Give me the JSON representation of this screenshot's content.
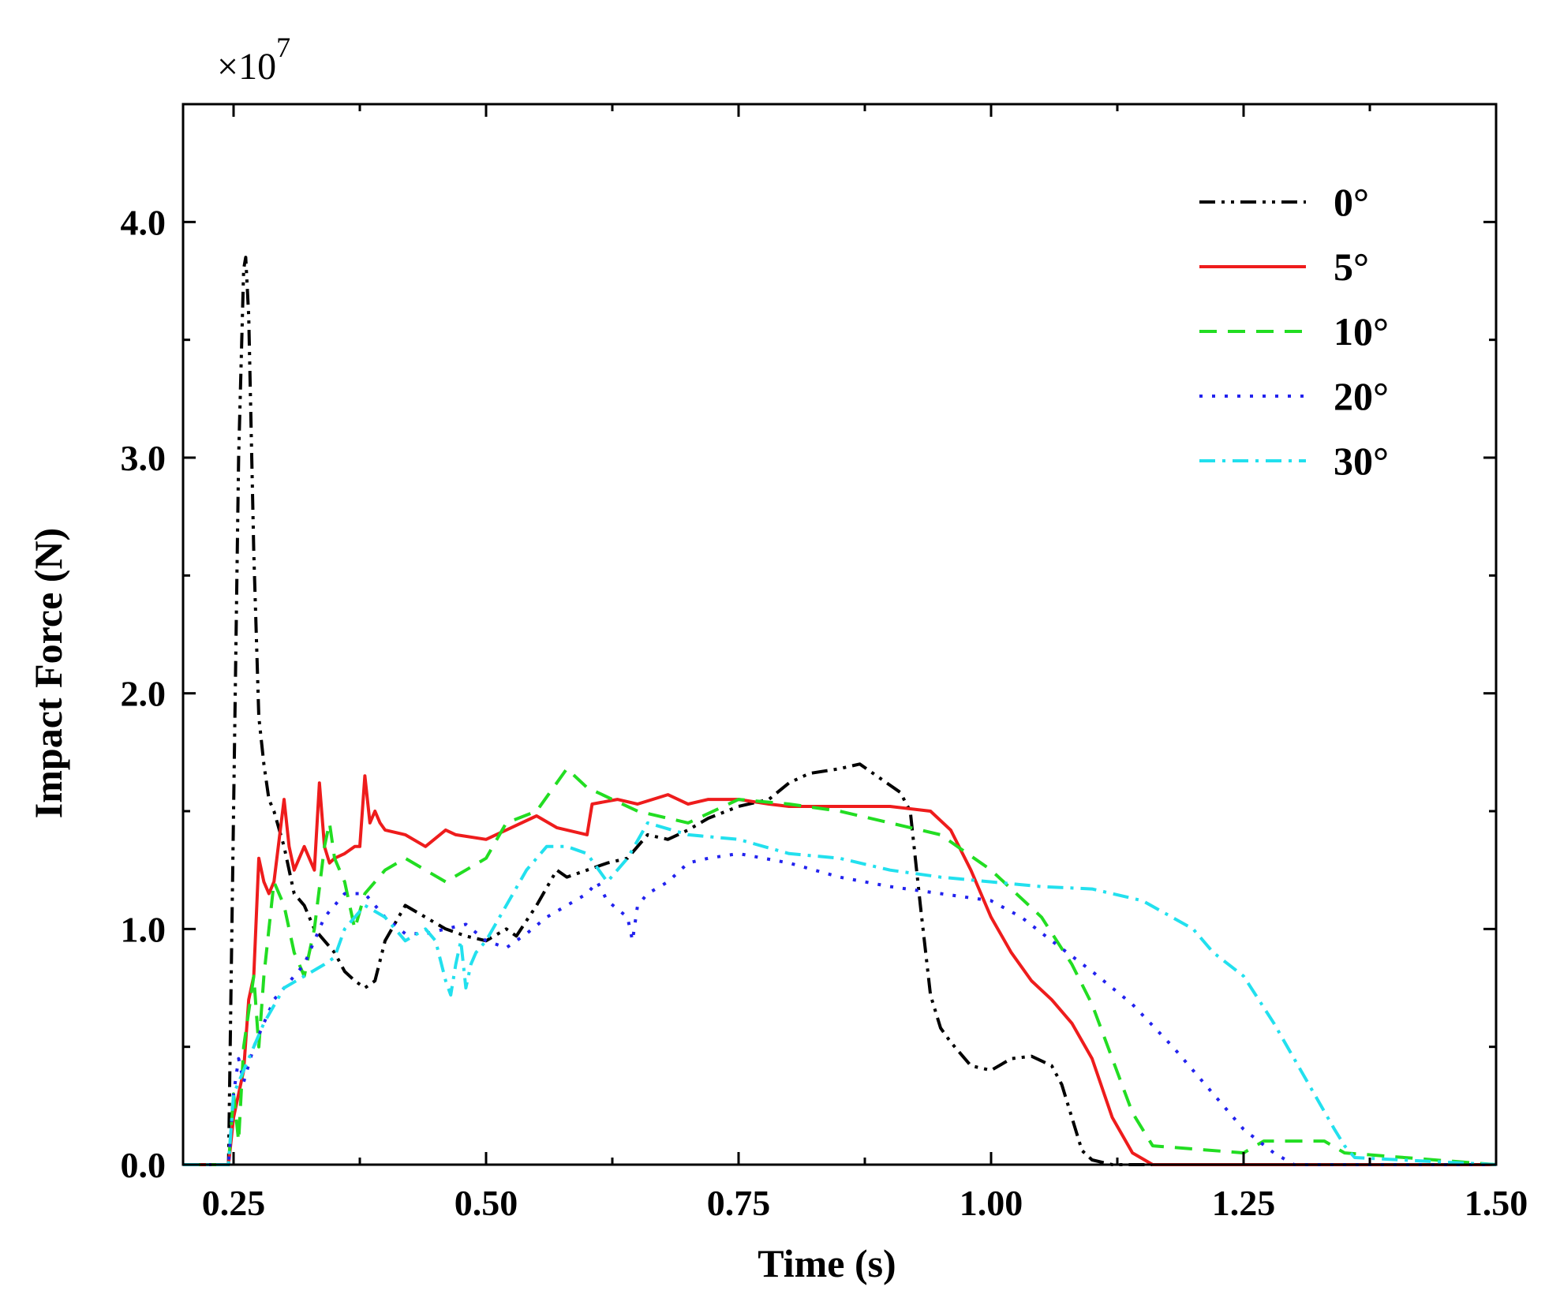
{
  "chart_data": {
    "type": "line",
    "title": "",
    "xlabel": "Time (s)",
    "ylabel": "Impact Force (N)",
    "y_multiplier": "×10",
    "y_multiplier_exp": "7",
    "xlim": [
      0.2,
      1.5
    ],
    "ylim": [
      0,
      4.5
    ],
    "x_ticks": [
      0.25,
      0.5,
      0.75,
      1.0,
      1.25,
      1.5
    ],
    "x_tick_labels": [
      "0.25",
      "0.50",
      "0.75",
      "1.00",
      "1.25",
      "1.50"
    ],
    "y_ticks": [
      0,
      1,
      2,
      3,
      4
    ],
    "y_tick_labels": [
      "0.0",
      "1.0",
      "2.0",
      "3.0",
      "4.0"
    ],
    "grid": false,
    "legend_position": "top-right",
    "series": [
      {
        "name": "0°",
        "color": "#000000",
        "dash": "dashdotdot",
        "x": [
          0.2,
          0.245,
          0.25,
          0.255,
          0.26,
          0.262,
          0.265,
          0.27,
          0.275,
          0.28,
          0.285,
          0.29,
          0.3,
          0.31,
          0.32,
          0.33,
          0.34,
          0.35,
          0.36,
          0.37,
          0.38,
          0.39,
          0.4,
          0.42,
          0.44,
          0.46,
          0.48,
          0.5,
          0.52,
          0.53,
          0.55,
          0.57,
          0.58,
          0.6,
          0.62,
          0.64,
          0.66,
          0.68,
          0.7,
          0.72,
          0.75,
          0.78,
          0.8,
          0.82,
          0.85,
          0.87,
          0.89,
          0.91,
          0.92,
          0.93,
          0.94,
          0.95,
          0.96,
          0.98,
          1.0,
          1.02,
          1.04,
          1.06,
          1.07,
          1.08,
          1.09,
          1.1,
          1.12,
          1.2,
          1.5
        ],
        "y": [
          0,
          0,
          1.5,
          3.0,
          3.8,
          3.85,
          3.6,
          2.6,
          1.9,
          1.7,
          1.55,
          1.5,
          1.35,
          1.15,
          1.1,
          1.0,
          0.95,
          0.9,
          0.82,
          0.78,
          0.75,
          0.78,
          0.95,
          1.1,
          1.05,
          1.0,
          0.97,
          0.95,
          1.0,
          0.97,
          1.1,
          1.25,
          1.22,
          1.25,
          1.28,
          1.3,
          1.4,
          1.38,
          1.42,
          1.47,
          1.52,
          1.55,
          1.62,
          1.66,
          1.68,
          1.7,
          1.64,
          1.58,
          1.5,
          1.1,
          0.72,
          0.58,
          0.52,
          0.42,
          0.4,
          0.45,
          0.46,
          0.42,
          0.34,
          0.2,
          0.06,
          0.02,
          0,
          0,
          0
        ]
      },
      {
        "name": "5°",
        "color": "#ee1c1c",
        "dash": "solid",
        "x": [
          0.2,
          0.245,
          0.25,
          0.26,
          0.265,
          0.27,
          0.275,
          0.28,
          0.285,
          0.29,
          0.3,
          0.305,
          0.31,
          0.315,
          0.32,
          0.33,
          0.335,
          0.34,
          0.345,
          0.35,
          0.36,
          0.37,
          0.375,
          0.38,
          0.385,
          0.39,
          0.395,
          0.4,
          0.42,
          0.44,
          0.46,
          0.47,
          0.5,
          0.52,
          0.55,
          0.57,
          0.6,
          0.605,
          0.63,
          0.65,
          0.68,
          0.7,
          0.72,
          0.75,
          0.78,
          0.8,
          0.85,
          0.9,
          0.94,
          0.96,
          0.98,
          1.0,
          1.02,
          1.04,
          1.06,
          1.08,
          1.1,
          1.12,
          1.14,
          1.16,
          1.3,
          1.5
        ],
        "y": [
          0,
          0,
          0.2,
          0.4,
          0.7,
          0.8,
          1.3,
          1.2,
          1.15,
          1.2,
          1.55,
          1.35,
          1.25,
          1.3,
          1.35,
          1.25,
          1.62,
          1.35,
          1.28,
          1.3,
          1.32,
          1.35,
          1.35,
          1.65,
          1.45,
          1.5,
          1.45,
          1.42,
          1.4,
          1.35,
          1.42,
          1.4,
          1.38,
          1.42,
          1.48,
          1.43,
          1.4,
          1.53,
          1.55,
          1.53,
          1.57,
          1.53,
          1.55,
          1.55,
          1.53,
          1.52,
          1.52,
          1.52,
          1.5,
          1.42,
          1.25,
          1.05,
          0.9,
          0.78,
          0.7,
          0.6,
          0.45,
          0.2,
          0.05,
          0,
          0,
          0
        ]
      },
      {
        "name": "10°",
        "color": "#22dd22",
        "dash": "dashed",
        "x": [
          0.2,
          0.245,
          0.25,
          0.255,
          0.26,
          0.27,
          0.275,
          0.28,
          0.29,
          0.3,
          0.31,
          0.32,
          0.33,
          0.34,
          0.345,
          0.35,
          0.36,
          0.37,
          0.38,
          0.4,
          0.42,
          0.44,
          0.46,
          0.48,
          0.5,
          0.52,
          0.55,
          0.58,
          0.6,
          0.65,
          0.7,
          0.75,
          0.8,
          0.85,
          0.9,
          0.95,
          1.0,
          1.05,
          1.08,
          1.1,
          1.12,
          1.14,
          1.16,
          1.25,
          1.27,
          1.33,
          1.35,
          1.5
        ],
        "y": [
          0,
          0,
          0.3,
          0.1,
          0.5,
          0.8,
          0.5,
          0.8,
          1.2,
          1.1,
          0.9,
          0.8,
          1.0,
          1.35,
          1.45,
          1.3,
          1.2,
          1.0,
          1.15,
          1.25,
          1.3,
          1.25,
          1.2,
          1.25,
          1.3,
          1.45,
          1.5,
          1.68,
          1.6,
          1.5,
          1.45,
          1.55,
          1.53,
          1.5,
          1.45,
          1.4,
          1.25,
          1.05,
          0.85,
          0.68,
          0.45,
          0.22,
          0.08,
          0.05,
          0.1,
          0.1,
          0.05,
          0
        ]
      },
      {
        "name": "20°",
        "color": "#2222ee",
        "dash": "dotted",
        "x": [
          0.2,
          0.245,
          0.25,
          0.255,
          0.26,
          0.27,
          0.28,
          0.29,
          0.3,
          0.32,
          0.34,
          0.35,
          0.36,
          0.38,
          0.4,
          0.42,
          0.44,
          0.46,
          0.48,
          0.5,
          0.52,
          0.54,
          0.56,
          0.58,
          0.6,
          0.61,
          0.62,
          0.64,
          0.645,
          0.65,
          0.66,
          0.68,
          0.7,
          0.72,
          0.75,
          0.8,
          0.85,
          0.9,
          0.95,
          1.0,
          1.03,
          1.06,
          1.1,
          1.14,
          1.18,
          1.22,
          1.25,
          1.28,
          1.3,
          1.4,
          1.5
        ],
        "y": [
          0,
          0,
          0.3,
          0.45,
          0.35,
          0.5,
          0.6,
          0.7,
          0.75,
          0.85,
          1.05,
          1.1,
          1.15,
          1.15,
          1.05,
          0.98,
          0.98,
          1.0,
          1.02,
          0.95,
          0.92,
          0.98,
          1.05,
          1.1,
          1.15,
          1.2,
          1.12,
          1.05,
          0.95,
          1.1,
          1.15,
          1.2,
          1.28,
          1.3,
          1.32,
          1.28,
          1.22,
          1.18,
          1.15,
          1.12,
          1.05,
          0.95,
          0.82,
          0.68,
          0.5,
          0.3,
          0.15,
          0.05,
          0,
          0,
          0
        ]
      },
      {
        "name": "30°",
        "color": "#22e0ee",
        "dash": "dashdot",
        "x": [
          0.2,
          0.245,
          0.25,
          0.26,
          0.27,
          0.28,
          0.3,
          0.32,
          0.34,
          0.35,
          0.36,
          0.38,
          0.4,
          0.42,
          0.44,
          0.45,
          0.46,
          0.465,
          0.47,
          0.475,
          0.48,
          0.485,
          0.49,
          0.5,
          0.52,
          0.54,
          0.56,
          0.58,
          0.6,
          0.62,
          0.64,
          0.66,
          0.7,
          0.75,
          0.8,
          0.85,
          0.9,
          0.95,
          1.0,
          1.05,
          1.1,
          1.15,
          1.2,
          1.22,
          1.25,
          1.28,
          1.3,
          1.32,
          1.34,
          1.35,
          1.36,
          1.5
        ],
        "y": [
          0,
          0,
          0.3,
          0.4,
          0.5,
          0.6,
          0.75,
          0.8,
          0.85,
          0.88,
          1.0,
          1.1,
          1.05,
          0.95,
          1.0,
          0.95,
          0.78,
          0.72,
          0.85,
          0.95,
          0.75,
          0.85,
          0.9,
          0.95,
          1.1,
          1.25,
          1.35,
          1.35,
          1.32,
          1.2,
          1.3,
          1.45,
          1.4,
          1.38,
          1.32,
          1.3,
          1.25,
          1.22,
          1.2,
          1.18,
          1.17,
          1.12,
          1.0,
          0.9,
          0.8,
          0.6,
          0.45,
          0.3,
          0.15,
          0.08,
          0.03,
          0
        ]
      }
    ]
  }
}
